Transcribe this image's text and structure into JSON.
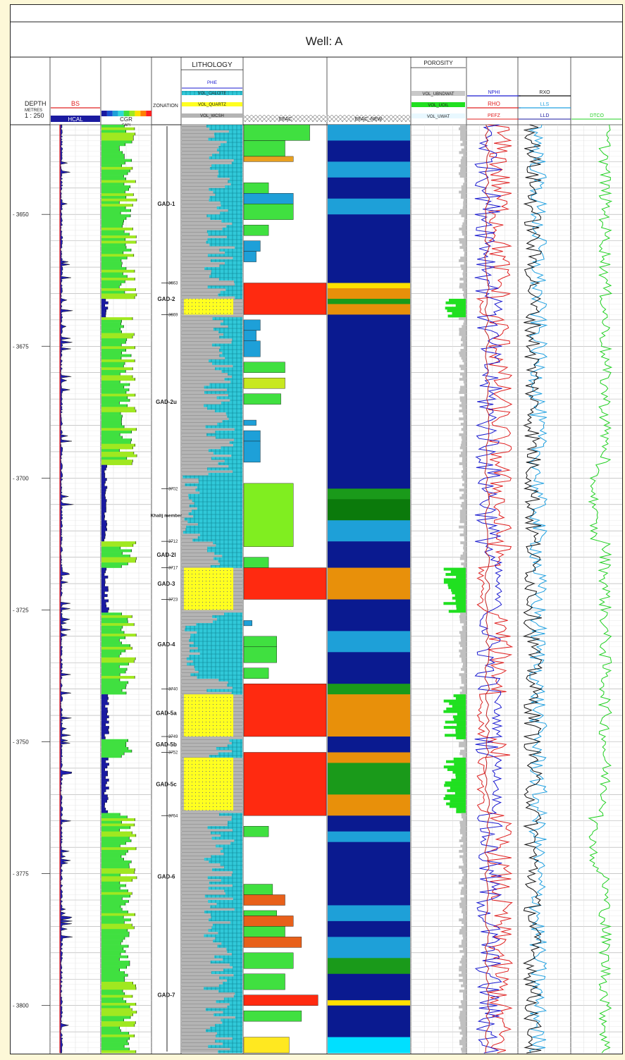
{
  "chart_data": {
    "type": "well_log",
    "title": "Well: A",
    "depth_header": {
      "label": "DEPTH",
      "units": "METRES",
      "scale": "1 : 250"
    },
    "depth_range": [
      3633,
      3809
    ],
    "depth_ticks": [
      3650,
      3675,
      3700,
      3725,
      3750,
      3775,
      3800
    ],
    "track_headers": {
      "lithology": "LITHOLOGY",
      "zonation": "ZONATION",
      "porosity": "POROSITY",
      "efac": "EFAC",
      "efac_new": "EFAC_NEW"
    },
    "curves": {
      "bs": {
        "name": "BS",
        "color": "#e02020"
      },
      "hcal": {
        "name": "HCAL",
        "color": "#1a1aa0"
      },
      "cgr": {
        "name": "CGR",
        "units": "GAPI",
        "range": [
          0,
          200
        ]
      },
      "phie": {
        "name": "PHIE"
      },
      "vol_calcite": {
        "name": "VOL_CALCITE"
      },
      "vol_quartz": {
        "name": "VOL_QUARTZ"
      },
      "vol_wcsh": {
        "name": "VOL_WCSH"
      },
      "vol_ubndwat": {
        "name": "VOL_UBNDWAT"
      },
      "vol_uoil": {
        "name": "VOL_UOIL"
      },
      "vol_uwat": {
        "name": "VOL_UWAT"
      },
      "nphi": {
        "name": "NPHI",
        "color": "#1a1ad0"
      },
      "rho": {
        "name": "RHO",
        "color": "#e02020"
      },
      "pefz": {
        "name": "PEFZ",
        "color": "#e02020"
      },
      "rxo": {
        "name": "RXO",
        "color": "#111111"
      },
      "lls": {
        "name": "LLS",
        "color": "#20a0e0"
      },
      "lld": {
        "name": "LLD",
        "color": "#1a1aa0"
      },
      "dtco": {
        "name": "DTCO",
        "color": "#20d020"
      }
    },
    "zones": [
      {
        "name": "GAD-1",
        "top": 3633,
        "base": 3663
      },
      {
        "name": "GAD-2",
        "top": 3663,
        "base": 3669
      },
      {
        "name": "GAD-2u",
        "top": 3669,
        "base": 3702
      },
      {
        "name": "Khalij member",
        "top": 3702,
        "base": 3712
      },
      {
        "name": "GAD-2l",
        "top": 3712,
        "base": 3717
      },
      {
        "name": "GAD-3",
        "top": 3717,
        "base": 3723
      },
      {
        "name": "GAD-4",
        "top": 3723,
        "base": 3740
      },
      {
        "name": "GAD-5a",
        "top": 3740,
        "base": 3749
      },
      {
        "name": "GAD-5b",
        "top": 3749,
        "base": 3752
      },
      {
        "name": "GAD-5c",
        "top": 3752,
        "base": 3764
      },
      {
        "name": "GAD-6",
        "top": 3764,
        "base": 3787
      },
      {
        "name": "GAD-7",
        "top": 3787,
        "base": 3809
      }
    ],
    "zone_boundary_labels": [
      "3663",
      "3669",
      "3702",
      "3712",
      "3717",
      "3723",
      "3740",
      "3749",
      "3752",
      "3764"
    ],
    "sand_intervals": [
      [
        3666,
        3669
      ],
      [
        3717,
        3725
      ],
      [
        3741,
        3749
      ],
      [
        3753,
        3763
      ]
    ],
    "efac_new_bands": [
      {
        "top": 3633,
        "base": 3636,
        "color": "#1ea0d8"
      },
      {
        "top": 3636,
        "base": 3640,
        "color": "#0a1a90"
      },
      {
        "top": 3640,
        "base": 3643,
        "color": "#1ea0d8"
      },
      {
        "top": 3643,
        "base": 3647,
        "color": "#0a1a90"
      },
      {
        "top": 3647,
        "base": 3650,
        "color": "#1ea0d8"
      },
      {
        "top": 3650,
        "base": 3663,
        "color": "#0a1a90"
      },
      {
        "top": 3663,
        "base": 3664,
        "color": "#ffe000"
      },
      {
        "top": 3664,
        "base": 3666,
        "color": "#e8900a"
      },
      {
        "top": 3666,
        "base": 3667,
        "color": "#1a9a1a"
      },
      {
        "top": 3667,
        "base": 3669,
        "color": "#e8900a"
      },
      {
        "top": 3669,
        "base": 3702,
        "color": "#0a1a90"
      },
      {
        "top": 3702,
        "base": 3704,
        "color": "#1a9a1a"
      },
      {
        "top": 3704,
        "base": 3708,
        "color": "#0b7a0b"
      },
      {
        "top": 3708,
        "base": 3712,
        "color": "#1ea0d8"
      },
      {
        "top": 3712,
        "base": 3717,
        "color": "#0a1a90"
      },
      {
        "top": 3717,
        "base": 3723,
        "color": "#e8900a"
      },
      {
        "top": 3723,
        "base": 3729,
        "color": "#0a1a90"
      },
      {
        "top": 3729,
        "base": 3733,
        "color": "#1ea0d8"
      },
      {
        "top": 3733,
        "base": 3739,
        "color": "#0a1a90"
      },
      {
        "top": 3739,
        "base": 3741,
        "color": "#1a9a1a"
      },
      {
        "top": 3741,
        "base": 3749,
        "color": "#e8900a"
      },
      {
        "top": 3749,
        "base": 3752,
        "color": "#0a1a90"
      },
      {
        "top": 3752,
        "base": 3754,
        "color": "#e8900a"
      },
      {
        "top": 3754,
        "base": 3760,
        "color": "#1a9a1a"
      },
      {
        "top": 3760,
        "base": 3764,
        "color": "#e8900a"
      },
      {
        "top": 3764,
        "base": 3767,
        "color": "#0a1a90"
      },
      {
        "top": 3767,
        "base": 3769,
        "color": "#1ea0d8"
      },
      {
        "top": 3769,
        "base": 3781,
        "color": "#0a1a90"
      },
      {
        "top": 3781,
        "base": 3784,
        "color": "#1ea0d8"
      },
      {
        "top": 3784,
        "base": 3787,
        "color": "#0a1a90"
      },
      {
        "top": 3787,
        "base": 3791,
        "color": "#1ea0d8"
      },
      {
        "top": 3791,
        "base": 3794,
        "color": "#1a9a1a"
      },
      {
        "top": 3794,
        "base": 3799,
        "color": "#0a1a90"
      },
      {
        "top": 3799,
        "base": 3800,
        "color": "#ffe000"
      },
      {
        "top": 3800,
        "base": 3806,
        "color": "#0a1a90"
      },
      {
        "top": 3806,
        "base": 3809,
        "color": "#00e0ff"
      }
    ],
    "efac_blocks": [
      {
        "top": 3633,
        "base": 3636,
        "value": 0.8,
        "color": "#40e040"
      },
      {
        "top": 3636,
        "base": 3639,
        "value": 0.5,
        "color": "#40e040"
      },
      {
        "top": 3639,
        "base": 3640,
        "value": 0.6,
        "color": "#e8a020"
      },
      {
        "top": 3644,
        "base": 3646,
        "value": 0.3,
        "color": "#40e040"
      },
      {
        "top": 3646,
        "base": 3648,
        "value": 0.6,
        "color": "#1ea0d8"
      },
      {
        "top": 3648,
        "base": 3651,
        "value": 0.6,
        "color": "#40e040"
      },
      {
        "top": 3652,
        "base": 3654,
        "value": 0.3,
        "color": "#40e040"
      },
      {
        "top": 3655,
        "base": 3657,
        "value": 0.2,
        "color": "#1ea0d8"
      },
      {
        "top": 3657,
        "base": 3659,
        "value": 0.15,
        "color": "#1ea0d8"
      },
      {
        "top": 3663,
        "base": 3669,
        "value": 1.0,
        "color": "#ff2a10"
      },
      {
        "top": 3670,
        "base": 3672,
        "value": 0.2,
        "color": "#1ea0d8"
      },
      {
        "top": 3672,
        "base": 3674,
        "value": 0.15,
        "color": "#1ea0d8"
      },
      {
        "top": 3674,
        "base": 3677,
        "value": 0.2,
        "color": "#1ea0d8"
      },
      {
        "top": 3678,
        "base": 3680,
        "value": 0.5,
        "color": "#40e040"
      },
      {
        "top": 3681,
        "base": 3683,
        "value": 0.5,
        "color": "#c8e820"
      },
      {
        "top": 3684,
        "base": 3686,
        "value": 0.45,
        "color": "#40e040"
      },
      {
        "top": 3689,
        "base": 3690,
        "value": 0.15,
        "color": "#1ea0d8"
      },
      {
        "top": 3691,
        "base": 3693,
        "value": 0.2,
        "color": "#1ea0d8"
      },
      {
        "top": 3693,
        "base": 3697,
        "value": 0.2,
        "color": "#1ea0d8"
      },
      {
        "top": 3701,
        "base": 3713,
        "value": 0.6,
        "color": "#80ee20"
      },
      {
        "top": 3715,
        "base": 3717,
        "value": 0.3,
        "color": "#40e040"
      },
      {
        "top": 3717,
        "base": 3723,
        "value": 1.0,
        "color": "#ff2a10"
      },
      {
        "top": 3727,
        "base": 3728,
        "value": 0.1,
        "color": "#1ea0d8"
      },
      {
        "top": 3730,
        "base": 3732,
        "value": 0.4,
        "color": "#40e040"
      },
      {
        "top": 3732,
        "base": 3735,
        "value": 0.4,
        "color": "#40e040"
      },
      {
        "top": 3736,
        "base": 3738,
        "value": 0.3,
        "color": "#40e040"
      },
      {
        "top": 3739,
        "base": 3749,
        "value": 1.0,
        "color": "#ff2a10"
      },
      {
        "top": 3752,
        "base": 3764,
        "value": 1.0,
        "color": "#ff2a10"
      },
      {
        "top": 3766,
        "base": 3768,
        "value": 0.3,
        "color": "#40e040"
      },
      {
        "top": 3777,
        "base": 3779,
        "value": 0.35,
        "color": "#40e040"
      },
      {
        "top": 3779,
        "base": 3781,
        "value": 0.5,
        "color": "#e8601a"
      },
      {
        "top": 3782,
        "base": 3783,
        "value": 0.4,
        "color": "#40e040"
      },
      {
        "top": 3783,
        "base": 3785,
        "value": 0.6,
        "color": "#e8601a"
      },
      {
        "top": 3785,
        "base": 3787,
        "value": 0.5,
        "color": "#40e040"
      },
      {
        "top": 3787,
        "base": 3789,
        "value": 0.7,
        "color": "#e8601a"
      },
      {
        "top": 3790,
        "base": 3793,
        "value": 0.6,
        "color": "#40e040"
      },
      {
        "top": 3794,
        "base": 3797,
        "value": 0.5,
        "color": "#40e040"
      },
      {
        "top": 3798,
        "base": 3800,
        "value": 0.9,
        "color": "#ff2a10"
      },
      {
        "top": 3801,
        "base": 3803,
        "value": 0.7,
        "color": "#40e040"
      },
      {
        "top": 3806,
        "base": 3809,
        "value": 0.55,
        "color": "#ffe820"
      }
    ]
  }
}
